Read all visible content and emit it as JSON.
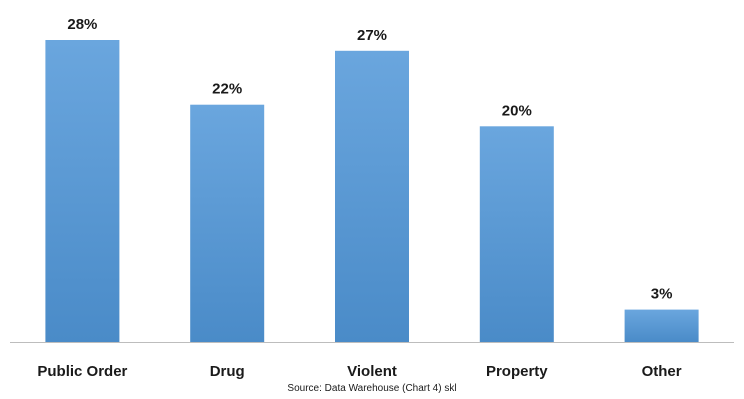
{
  "chart_data": {
    "type": "bar",
    "categories": [
      "Public Order",
      "Drug",
      "Violent",
      "Property",
      "Other"
    ],
    "values": [
      28,
      22,
      27,
      20,
      3
    ],
    "value_labels": [
      "28%",
      "22%",
      "27%",
      "20%",
      "3%"
    ],
    "unit": "%",
    "title": "",
    "xlabel": "",
    "ylabel": "",
    "ylim": [
      0,
      30
    ],
    "grid": false,
    "legend": "none",
    "bar_color": "#5b9bd5",
    "bar_color_light": "#6aa6de",
    "bar_color_dark": "#4a8bc8",
    "source": "Source: Data Warehouse (Chart 4) skl"
  }
}
